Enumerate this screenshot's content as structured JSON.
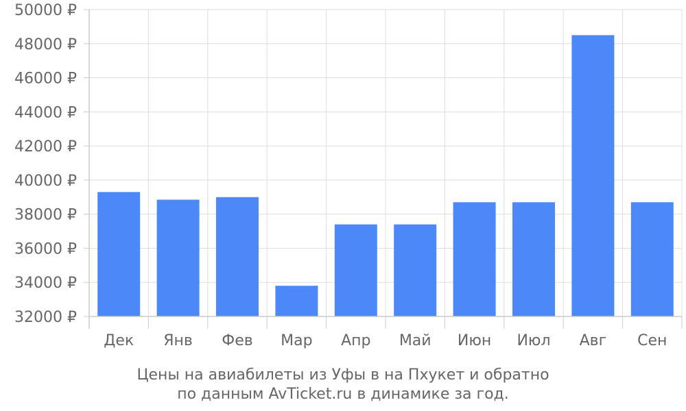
{
  "chart_data": {
    "type": "bar",
    "categories": [
      "Дек",
      "Янв",
      "Фев",
      "Мар",
      "Апр",
      "Май",
      "Июн",
      "Июл",
      "Авг",
      "Сен"
    ],
    "values": [
      39300,
      38850,
      39000,
      33800,
      37400,
      37400,
      38700,
      38700,
      48500,
      38700
    ],
    "ylim": [
      32000,
      50000
    ],
    "yticks": [
      32000,
      34000,
      36000,
      38000,
      40000,
      42000,
      44000,
      46000,
      48000,
      50000
    ],
    "ytick_labels": [
      "32000 ₽",
      "34000 ₽",
      "36000 ₽",
      "38000 ₽",
      "40000 ₽",
      "42000 ₽",
      "44000 ₽",
      "46000 ₽",
      "48000 ₽",
      "50000 ₽"
    ],
    "bar_color": "#4d88f9",
    "grid": true,
    "caption_line_1": "Цены на авиабилеты из Уфы в на Пхукет и обратно",
    "caption_line_2": "по данным AvTicket.ru в динамике за год."
  }
}
